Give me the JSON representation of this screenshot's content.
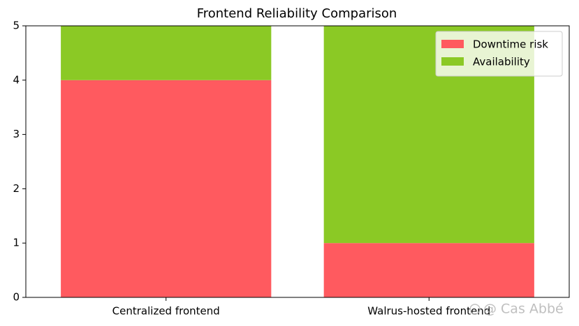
{
  "chart_data": {
    "type": "stacked-bar",
    "title": "Frontend Reliability Comparison",
    "categories": [
      "Centralized frontend",
      "Walrus-hosted frontend"
    ],
    "series": [
      {
        "name": "Downtime risk",
        "color": "#ff5a5f",
        "values": [
          4,
          1
        ]
      },
      {
        "name": "Availability",
        "color": "#8bc925",
        "values": [
          1,
          4
        ]
      }
    ],
    "ylim": [
      0,
      5
    ],
    "yticks": [
      0,
      1,
      2,
      3,
      4,
      5
    ],
    "grid": false,
    "legend": "upper-right",
    "watermark": "@ Cas Abbé"
  }
}
